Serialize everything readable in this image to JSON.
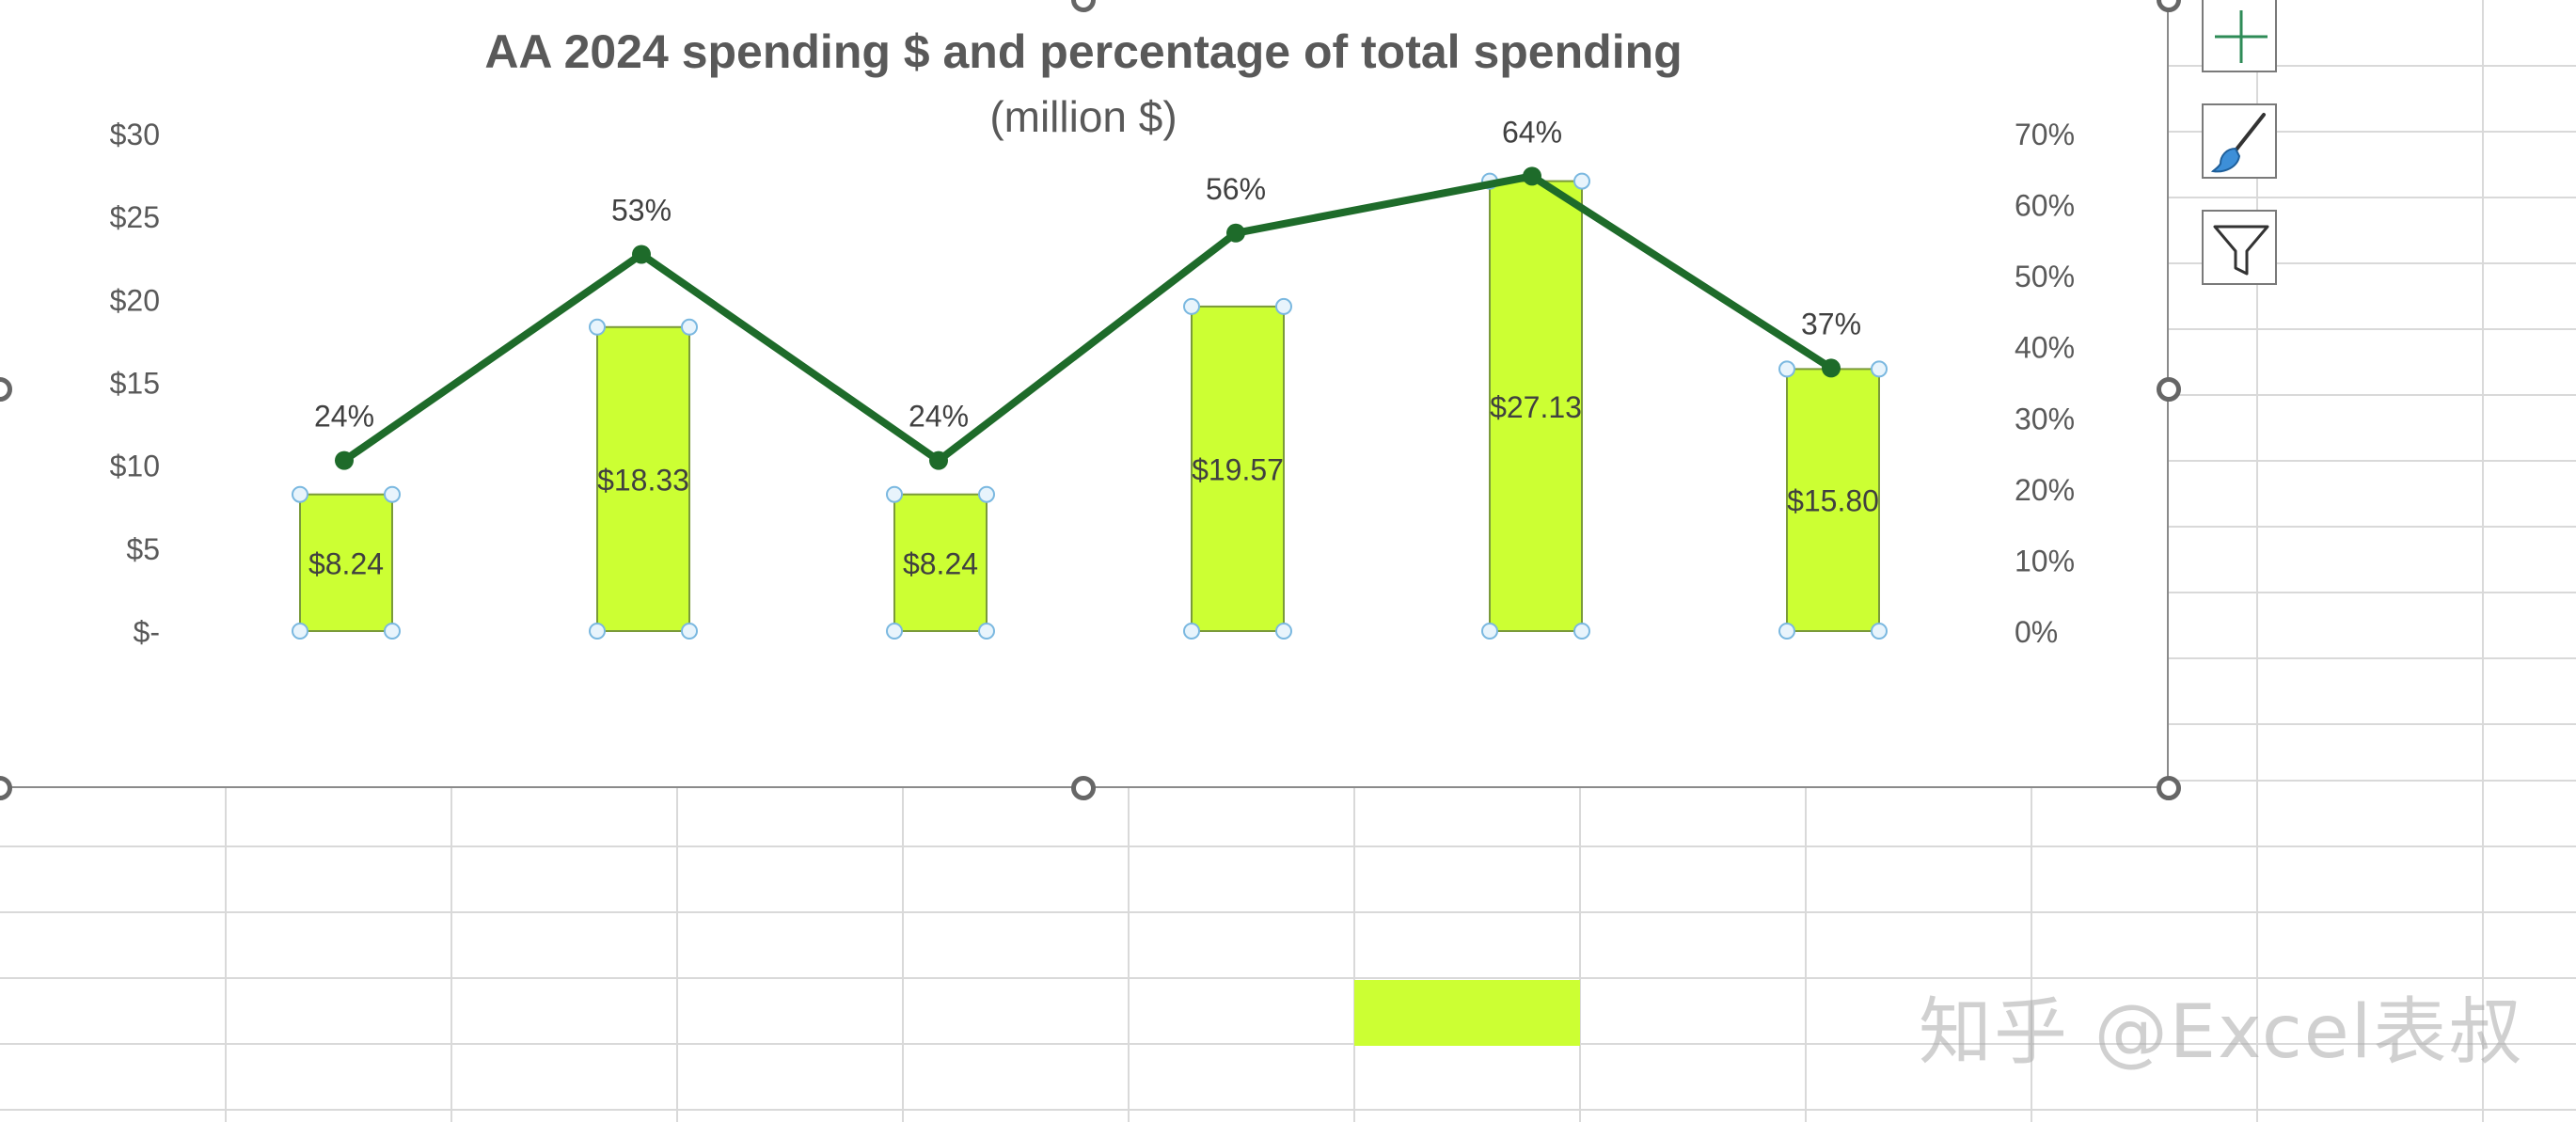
{
  "chart_data": {
    "type": "bar",
    "title": "AA 2024 spending $ and percentage of total spending",
    "subtitle": "(million $)",
    "categories": [
      "",
      "",
      "",
      "",
      "",
      ""
    ],
    "series": [
      {
        "type": "bar",
        "values": [
          8.24,
          18.33,
          8.24,
          19.57,
          27.13,
          15.8
        ],
        "labels": [
          "$8.24",
          "$18.33",
          "$8.24",
          "$19.57",
          "$27.13",
          "$15.80"
        ],
        "axis": "left"
      },
      {
        "type": "line",
        "values": [
          24,
          53,
          24,
          56,
          64,
          37
        ],
        "labels": [
          "24%",
          "53%",
          "24%",
          "56%",
          "64%",
          "37%"
        ],
        "axis": "right"
      }
    ],
    "y_left": {
      "ylim": [
        0,
        30
      ],
      "ticks": [
        0,
        5,
        10,
        15,
        20,
        25,
        30
      ],
      "tick_labels": [
        "$-",
        "$5",
        "$10",
        "$15",
        "$20",
        "$25",
        "$30"
      ]
    },
    "y_right": {
      "ylim": [
        0,
        70
      ],
      "ticks": [
        0,
        10,
        20,
        30,
        40,
        50,
        60,
        70
      ],
      "tick_labels": [
        "0%",
        "10%",
        "20%",
        "30%",
        "40%",
        "50%",
        "60%",
        "70%"
      ]
    },
    "grid": false,
    "legend": "none",
    "colors": {
      "bar": "#ccff33",
      "bar_border": "#7a9a3a",
      "line": "#1e6b2a",
      "handle": "#a8d4f0"
    }
  },
  "side_buttons": [
    {
      "icon": "plus-icon"
    },
    {
      "icon": "brush-icon"
    },
    {
      "icon": "filter-icon"
    }
  ],
  "sheet": {
    "highlight_color": "#ccff33"
  },
  "watermark": "知乎 @Excel表叔"
}
